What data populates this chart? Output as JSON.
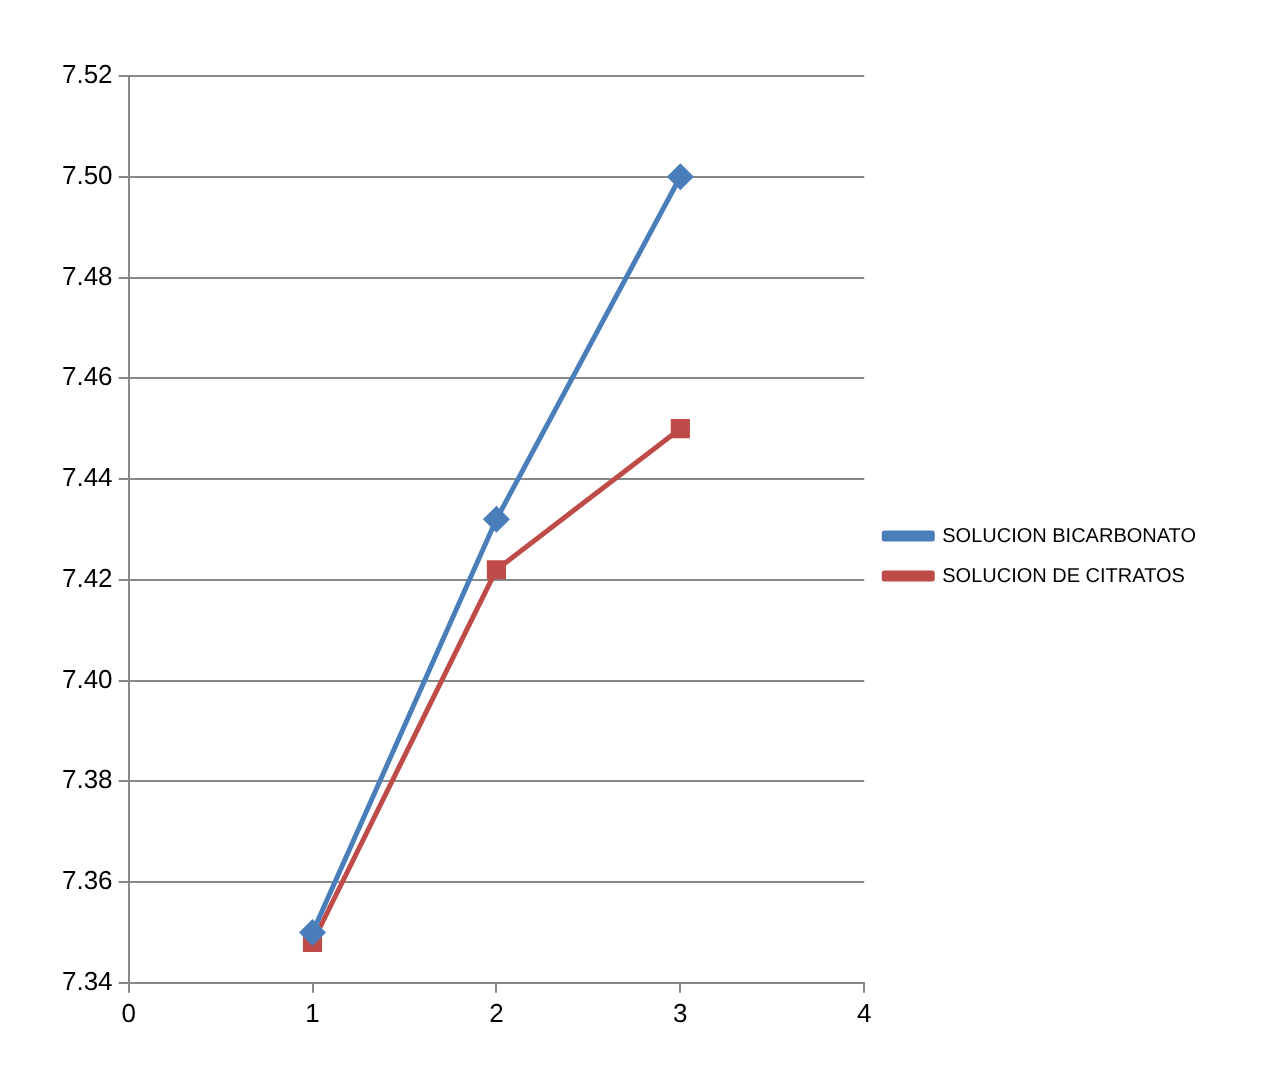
{
  "chart_data": {
    "type": "line",
    "x": [
      1,
      2,
      3
    ],
    "series": [
      {
        "name": "SOLUCION BICARBONATO",
        "color": "#4a7ebb",
        "marker": "diamond",
        "values": [
          7.35,
          7.432,
          7.5
        ]
      },
      {
        "name": "SOLUCION DE CITRATOS",
        "color": "#be4b48",
        "marker": "square",
        "values": [
          7.348,
          7.422,
          7.45
        ]
      }
    ],
    "xlim": [
      0,
      4
    ],
    "xticks": [
      0,
      1,
      2,
      3,
      4
    ],
    "ylim": [
      7.34,
      7.52
    ],
    "yticks": [
      7.34,
      7.36,
      7.38,
      {
        "value": 7.4,
        "label": "7.40"
      },
      7.42,
      7.44,
      7.46,
      7.48,
      {
        "value": 7.5,
        "label": "7.50"
      },
      7.52
    ],
    "grid": "y",
    "legend": "right"
  }
}
